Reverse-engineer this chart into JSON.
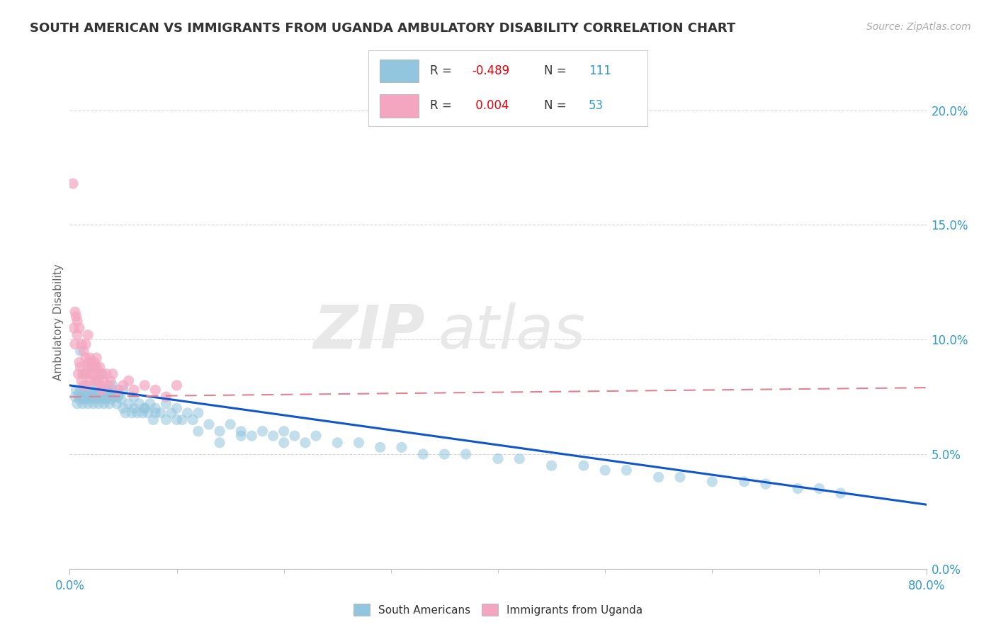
{
  "title": "SOUTH AMERICAN VS IMMIGRANTS FROM UGANDA AMBULATORY DISABILITY CORRELATION CHART",
  "source": "Source: ZipAtlas.com",
  "ylabel": "Ambulatory Disability",
  "right_yticks": [
    "0.0%",
    "5.0%",
    "10.0%",
    "15.0%",
    "20.0%"
  ],
  "right_yvalues": [
    0.0,
    5.0,
    10.0,
    15.0,
    20.0
  ],
  "xlim": [
    0.0,
    80.0
  ],
  "ylim": [
    0.0,
    21.5
  ],
  "legend_r1_pre": "R = ",
  "legend_r1_val": "-0.489",
  "legend_n1_pre": "  N = ",
  "legend_n1_val": "111",
  "legend_r2_pre": "R =  ",
  "legend_r2_val": "0.004",
  "legend_n2_pre": "  N = ",
  "legend_n2_val": "53",
  "color_blue": "#92c5de",
  "color_pink": "#f4a6c0",
  "color_blue_line": "#1155cc",
  "color_pink_line": "#e08090",
  "r_color": "#e8000a",
  "n_color": "#3399cc",
  "text_color": "#333333",
  "grid_color": "#d8d8d8",
  "tick_color": "#3399cc",
  "sa_x": [
    0.5,
    0.6,
    0.7,
    0.8,
    0.9,
    1.0,
    1.1,
    1.2,
    1.3,
    1.4,
    1.5,
    1.6,
    1.7,
    1.8,
    1.9,
    2.0,
    2.1,
    2.2,
    2.3,
    2.4,
    2.5,
    2.6,
    2.7,
    2.8,
    2.9,
    3.0,
    3.1,
    3.2,
    3.3,
    3.4,
    3.5,
    3.6,
    3.7,
    3.8,
    3.9,
    4.0,
    4.2,
    4.4,
    4.6,
    4.8,
    5.0,
    5.2,
    5.5,
    5.8,
    6.0,
    6.3,
    6.5,
    6.8,
    7.0,
    7.3,
    7.5,
    7.8,
    8.0,
    8.5,
    9.0,
    9.5,
    10.0,
    10.5,
    11.0,
    11.5,
    12.0,
    13.0,
    14.0,
    15.0,
    16.0,
    17.0,
    18.0,
    19.0,
    20.0,
    21.0,
    22.0,
    23.0,
    25.0,
    27.0,
    29.0,
    31.0,
    33.0,
    35.0,
    37.0,
    40.0,
    42.0,
    45.0,
    48.0,
    50.0,
    52.0,
    55.0,
    57.0,
    60.0,
    63.0,
    65.0,
    68.0,
    70.0,
    72.0,
    1.0,
    1.5,
    2.0,
    2.5,
    3.0,
    3.5,
    4.0,
    4.5,
    5.0,
    6.0,
    7.0,
    8.0,
    9.0,
    10.0,
    12.0,
    14.0,
    16.0,
    20.0
  ],
  "sa_y": [
    7.5,
    7.8,
    7.2,
    7.6,
    7.4,
    7.8,
    7.5,
    7.2,
    7.6,
    7.4,
    7.8,
    7.5,
    7.2,
    7.6,
    7.4,
    7.8,
    7.5,
    7.2,
    7.6,
    7.4,
    7.8,
    7.5,
    7.2,
    7.6,
    7.4,
    7.8,
    7.5,
    7.2,
    7.6,
    7.4,
    7.8,
    7.5,
    7.2,
    7.6,
    7.4,
    7.8,
    7.5,
    7.2,
    7.6,
    7.4,
    7.0,
    6.8,
    7.2,
    6.8,
    7.0,
    6.8,
    7.2,
    6.8,
    7.0,
    6.8,
    7.2,
    6.5,
    7.0,
    6.8,
    6.5,
    6.8,
    7.0,
    6.5,
    6.8,
    6.5,
    6.8,
    6.3,
    6.0,
    6.3,
    6.0,
    5.8,
    6.0,
    5.8,
    6.0,
    5.8,
    5.5,
    5.8,
    5.5,
    5.5,
    5.3,
    5.3,
    5.0,
    5.0,
    5.0,
    4.8,
    4.8,
    4.5,
    4.5,
    4.3,
    4.3,
    4.0,
    4.0,
    3.8,
    3.8,
    3.7,
    3.5,
    3.5,
    3.3,
    9.5,
    8.5,
    8.8,
    8.2,
    8.5,
    7.8,
    8.0,
    7.5,
    7.8,
    7.5,
    7.0,
    6.8,
    7.2,
    6.5,
    6.0,
    5.5,
    5.8,
    5.5
  ],
  "ug_x": [
    0.3,
    0.4,
    0.5,
    0.6,
    0.7,
    0.8,
    0.9,
    1.0,
    1.1,
    1.2,
    1.3,
    1.4,
    1.5,
    1.6,
    1.7,
    1.8,
    1.9,
    2.0,
    2.1,
    2.2,
    2.3,
    2.4,
    2.5,
    2.6,
    2.7,
    2.8,
    2.9,
    3.0,
    3.2,
    3.4,
    3.6,
    3.8,
    4.0,
    4.5,
    5.0,
    5.5,
    6.0,
    7.0,
    8.0,
    9.0,
    10.0,
    0.5,
    0.7,
    0.9,
    1.1,
    1.3,
    1.5,
    1.7,
    1.9,
    2.1,
    2.3,
    2.5,
    3.0
  ],
  "ug_y": [
    16.8,
    10.5,
    9.8,
    11.0,
    10.2,
    8.5,
    9.0,
    8.8,
    8.2,
    8.5,
    8.0,
    8.5,
    9.2,
    8.0,
    8.8,
    9.0,
    8.5,
    8.2,
    8.8,
    8.5,
    9.0,
    8.2,
    8.8,
    8.5,
    8.2,
    8.8,
    8.0,
    7.8,
    8.2,
    8.5,
    8.0,
    8.2,
    8.5,
    7.8,
    8.0,
    8.2,
    7.8,
    8.0,
    7.8,
    7.5,
    8.0,
    11.2,
    10.8,
    10.5,
    9.8,
    9.5,
    9.8,
    10.2,
    9.2,
    9.0,
    8.8,
    9.2,
    8.5
  ],
  "sa_trend_x0": 0.0,
  "sa_trend_x1": 80.0,
  "sa_trend_y0": 8.0,
  "sa_trend_y1": 2.8,
  "ug_trend_x0": 0.0,
  "ug_trend_x1": 80.0,
  "ug_trend_y0": 7.5,
  "ug_trend_y1": 7.9
}
